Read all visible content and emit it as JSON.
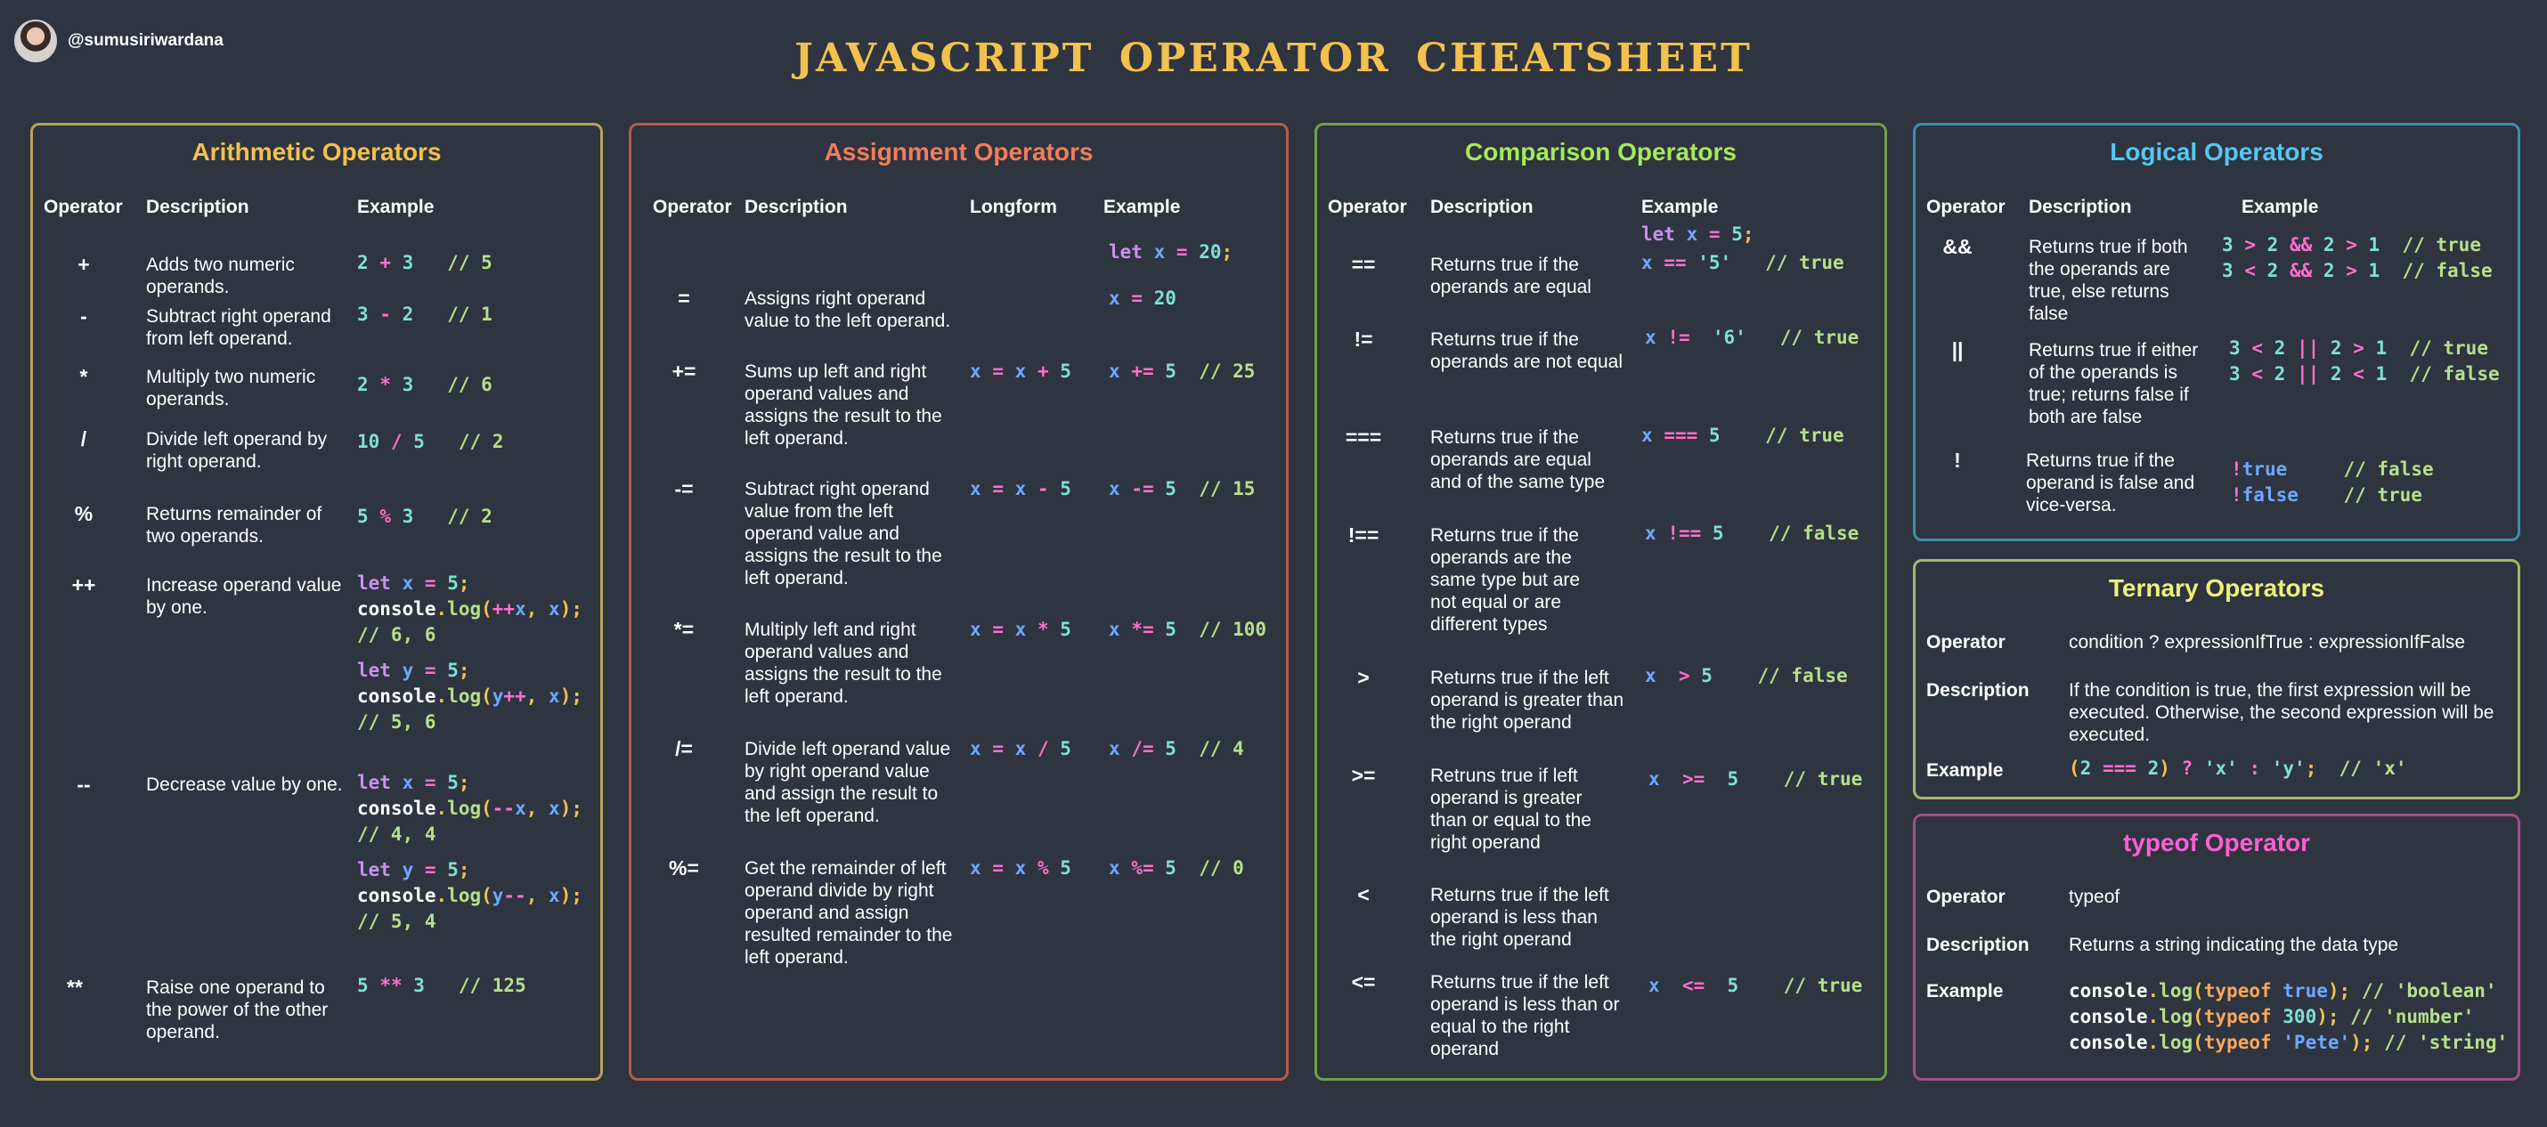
{
  "header": {
    "handle": "@sumusiriwardana",
    "title": "JAVASCRIPT  OPERATOR  CHEATSHEET"
  },
  "arithmetic": {
    "title": "Arithmetic Operators",
    "col_operator": "Operator",
    "col_description": "Description",
    "col_example": "Example",
    "rows": [
      {
        "op": "+",
        "desc": "Adds two numeric operands."
      },
      {
        "op": "-",
        "desc": "Subtract right operand from left operand."
      },
      {
        "op": "*",
        "desc": "Multiply two numeric operands."
      },
      {
        "op": "/",
        "desc": "Divide left operand by right operand."
      },
      {
        "op": "%",
        "desc": "Returns remainder of two operands."
      },
      {
        "op": "++",
        "desc": "Increase operand value by one."
      },
      {
        "op": "--",
        "desc": "Decrease value by one."
      },
      {
        "op": "**",
        "desc": "Raise one operand to the power of the other operand."
      }
    ]
  },
  "assignment": {
    "title": "Assignment Operators",
    "col_operator": "Operator",
    "col_description": "Description",
    "col_longform": "Longform",
    "col_example": "Example",
    "rows": [
      {
        "op": "=",
        "desc": "Assigns right operand value to the left operand."
      },
      {
        "op": "+=",
        "desc": "Sums up left and right operand values and assigns the result to the left operand."
      },
      {
        "op": "-=",
        "desc": "Subtract right operand value from the left operand value and assigns the result to the left operand."
      },
      {
        "op": "*=",
        "desc": " Multiply left and right operand values and assigns the result to the left operand."
      },
      {
        "op": "/=",
        "desc": "Divide left operand value by right operand value and assign the result to the left operand."
      },
      {
        "op": "%=",
        "desc": "Get the remainder of left operand divide by right operand and assign resulted remainder to the left operand."
      }
    ]
  },
  "comparison": {
    "title": "Comparison Operators",
    "col_operator": "Operator",
    "col_description": "Description",
    "col_example": "Example",
    "rows": [
      {
        "op": "==",
        "desc": "Returns true if the operands are equal"
      },
      {
        "op": "!=",
        "desc": "Returns true if the operands are not equal"
      },
      {
        "op": "===",
        "desc": "Returns true if the operands are equal and of the same type"
      },
      {
        "op": "!==",
        "desc": "Returns true if the operands are the same type but are not equal or are different types"
      },
      {
        "op": ">",
        "desc": "Returns true if the left operand is greater than the right operand"
      },
      {
        "op": ">=",
        "desc": "Retruns true if left operand is greater than or equal to the right operand"
      },
      {
        "op": "<",
        "desc": "Returns true if the left operand is less than the right operand"
      },
      {
        "op": "<=",
        "desc": "Returns true if the left operand is less than or equal to the right operand"
      }
    ]
  },
  "logical": {
    "title": "Logical Operators",
    "col_operator": "Operator",
    "col_description": "Description",
    "col_example": "Example",
    "rows": [
      {
        "op": "&&",
        "desc": "Returns true if both the operands are true, else returns false"
      },
      {
        "op": "||",
        "desc": "Returns true if either of the operands is true; returns false if both are false"
      },
      {
        "op": "!",
        "desc": "Returns true if the operand is false and vice-versa."
      }
    ]
  },
  "ternary": {
    "title": "Ternary Operators",
    "label_operator": "Operator",
    "value_operator": "condition ? expressionIfTrue : expressionIfFalse",
    "label_description": "Description",
    "value_description": "If the condition is true, the first expression will be executed. Otherwise, the second expression will be executed.",
    "label_example": "Example"
  },
  "typeof": {
    "title": "typeof Operator",
    "label_operator": "Operator",
    "value_operator": "typeof",
    "label_description": "Description",
    "value_description": "Returns a string indicating the data type",
    "label_example": "Example"
  },
  "colors": {
    "background": "#2e3440",
    "title": "#f2c14e",
    "keyword": "#c792ea",
    "identifier": "#6ea8fe",
    "number": "#7fe1d0",
    "operator": "#ff6fcf",
    "comment": "#b5e08a"
  }
}
